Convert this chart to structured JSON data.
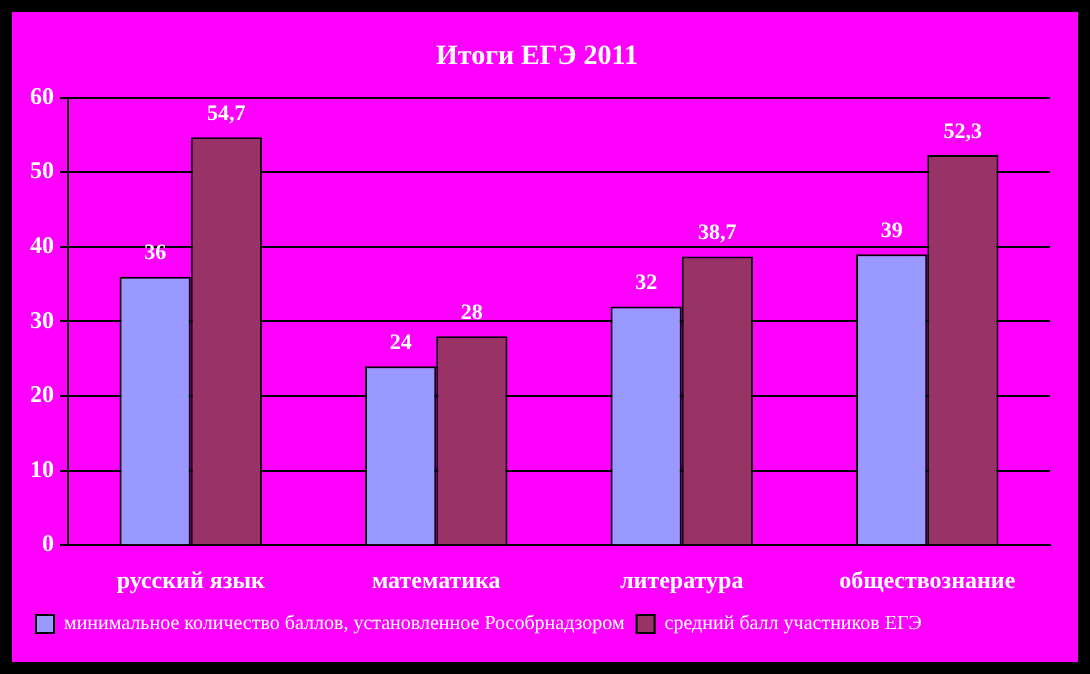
{
  "chart_data": {
    "type": "bar",
    "title": "Итоги ЕГЭ 2011",
    "categories": [
      "русский язык",
      "математика",
      "литература",
      "обществознание"
    ],
    "series": [
      {
        "name": "минимальное количество баллов, установленное Рособрнадзором",
        "color": "#9999ff",
        "values": [
          36,
          24,
          32,
          39
        ],
        "value_labels": [
          "36",
          "24",
          "32",
          "39"
        ]
      },
      {
        "name": "средний балл участников ЕГЭ",
        "color": "#993366",
        "values": [
          54.7,
          28,
          38.7,
          52.3
        ],
        "value_labels": [
          "54,7",
          "28",
          "38,7",
          "52,3"
        ]
      }
    ],
    "ylim": [
      0,
      60
    ],
    "yticks": [
      0,
      10,
      20,
      30,
      40,
      50,
      60
    ],
    "grid": "y",
    "legend": "bottom"
  }
}
